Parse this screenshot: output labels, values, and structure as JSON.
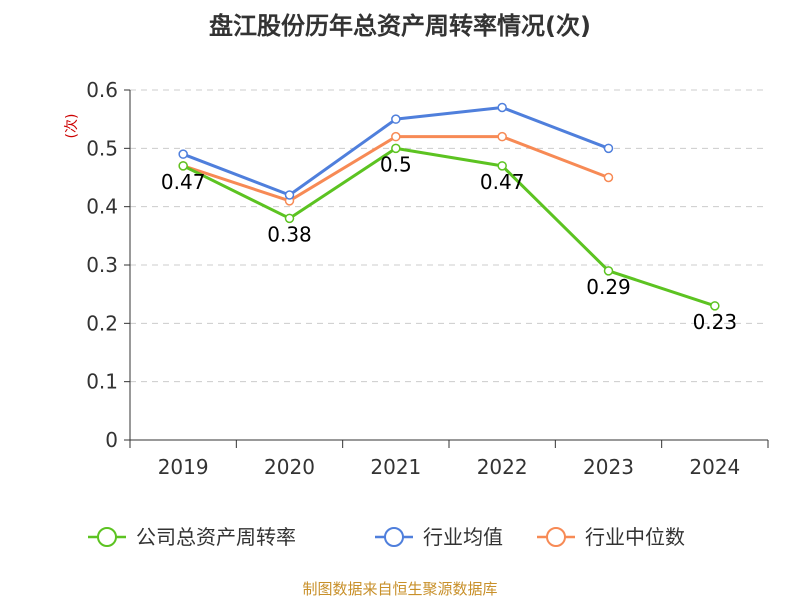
{
  "chart_data": {
    "type": "line",
    "title": "盘江股份历年总资产周转率情况(次)",
    "ylabel": "(次)",
    "categories": [
      "2019",
      "2020",
      "2021",
      "2022",
      "2023",
      "2024"
    ],
    "yticks": [
      "0",
      "0.1",
      "0.2",
      "0.3",
      "0.4",
      "0.5",
      "0.6"
    ],
    "ylim": [
      0,
      0.6
    ],
    "grid": "horizontal-dashed",
    "legend_position": "bottom",
    "series": [
      {
        "name": "公司总资产周转率",
        "color": "#5cc321",
        "values": [
          0.47,
          0.38,
          0.5,
          0.47,
          0.29,
          0.23
        ],
        "labels": [
          "0.47",
          "0.38",
          "0.5",
          "0.47",
          "0.29",
          "0.23"
        ]
      },
      {
        "name": "行业均值",
        "color": "#4f7fdc",
        "values": [
          0.49,
          0.42,
          0.55,
          0.57,
          0.5,
          null
        ]
      },
      {
        "name": "行业中位数",
        "color": "#f78a55",
        "values": [
          0.47,
          0.41,
          0.52,
          0.52,
          0.45,
          null
        ]
      }
    ],
    "source": "制图数据来自恒生聚源数据库"
  }
}
